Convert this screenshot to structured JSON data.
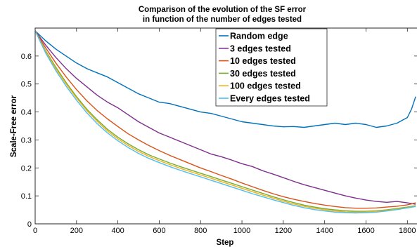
{
  "chart_data": {
    "type": "line",
    "title_lines": [
      "Comparison of the evolution of the SF error",
      "in function of the number of edges tested"
    ],
    "xlabel": "Step",
    "ylabel": "Scale-Free error",
    "xlim": [
      0,
      1850
    ],
    "ylim": [
      0,
      0.7
    ],
    "x_ticks": [
      0,
      200,
      400,
      600,
      800,
      1000,
      1200,
      1400,
      1600,
      1800
    ],
    "y_ticks": [
      0,
      0.1,
      0.2,
      0.3,
      0.4,
      0.5,
      0.6
    ],
    "legend_position": "top-center",
    "grid": false,
    "series": [
      {
        "name": "Random edge",
        "color": "#0072BD",
        "x": [
          0,
          50,
          100,
          150,
          200,
          250,
          300,
          350,
          400,
          450,
          500,
          550,
          600,
          650,
          700,
          750,
          800,
          850,
          900,
          950,
          1000,
          1050,
          1100,
          1150,
          1200,
          1250,
          1300,
          1350,
          1400,
          1450,
          1500,
          1550,
          1600,
          1650,
          1700,
          1750,
          1800,
          1820,
          1840
        ],
        "y": [
          0.69,
          0.655,
          0.625,
          0.6,
          0.575,
          0.555,
          0.54,
          0.525,
          0.505,
          0.485,
          0.465,
          0.45,
          0.435,
          0.43,
          0.42,
          0.41,
          0.4,
          0.395,
          0.385,
          0.375,
          0.365,
          0.36,
          0.355,
          0.35,
          0.347,
          0.348,
          0.345,
          0.35,
          0.355,
          0.36,
          0.355,
          0.36,
          0.355,
          0.345,
          0.35,
          0.36,
          0.38,
          0.41,
          0.455
        ]
      },
      {
        "name": "3 edges tested",
        "color": "#7E2F8E",
        "x": [
          0,
          50,
          100,
          150,
          200,
          250,
          300,
          350,
          400,
          450,
          500,
          550,
          600,
          650,
          700,
          750,
          800,
          850,
          900,
          950,
          1000,
          1050,
          1100,
          1150,
          1200,
          1250,
          1300,
          1350,
          1400,
          1450,
          1500,
          1550,
          1600,
          1650,
          1700,
          1750,
          1800,
          1840
        ],
        "y": [
          0.69,
          0.64,
          0.595,
          0.555,
          0.52,
          0.49,
          0.46,
          0.435,
          0.415,
          0.39,
          0.365,
          0.345,
          0.325,
          0.31,
          0.295,
          0.28,
          0.265,
          0.25,
          0.24,
          0.228,
          0.215,
          0.205,
          0.19,
          0.178,
          0.165,
          0.152,
          0.14,
          0.13,
          0.12,
          0.11,
          0.1,
          0.092,
          0.085,
          0.08,
          0.077,
          0.08,
          0.075,
          0.07
        ]
      },
      {
        "name": "10 edges tested",
        "color": "#D95319",
        "x": [
          0,
          50,
          100,
          150,
          200,
          250,
          300,
          350,
          400,
          450,
          500,
          550,
          600,
          650,
          700,
          750,
          800,
          850,
          900,
          950,
          1000,
          1050,
          1100,
          1150,
          1200,
          1250,
          1300,
          1350,
          1400,
          1450,
          1500,
          1550,
          1600,
          1650,
          1700,
          1750,
          1800,
          1840
        ],
        "y": [
          0.69,
          0.63,
          0.575,
          0.525,
          0.48,
          0.44,
          0.405,
          0.375,
          0.348,
          0.322,
          0.3,
          0.28,
          0.262,
          0.245,
          0.23,
          0.215,
          0.2,
          0.187,
          0.173,
          0.16,
          0.146,
          0.133,
          0.12,
          0.108,
          0.097,
          0.088,
          0.08,
          0.073,
          0.067,
          0.062,
          0.058,
          0.056,
          0.056,
          0.057,
          0.06,
          0.063,
          0.068,
          0.075
        ]
      },
      {
        "name": "30 edges tested",
        "color": "#77AC30",
        "x": [
          0,
          50,
          100,
          150,
          200,
          250,
          300,
          350,
          400,
          450,
          500,
          550,
          600,
          650,
          700,
          750,
          800,
          850,
          900,
          950,
          1000,
          1050,
          1100,
          1150,
          1200,
          1250,
          1300,
          1350,
          1400,
          1450,
          1500,
          1550,
          1600,
          1650,
          1700,
          1750,
          1800,
          1840
        ],
        "y": [
          0.69,
          0.62,
          0.56,
          0.505,
          0.455,
          0.41,
          0.372,
          0.338,
          0.31,
          0.286,
          0.265,
          0.247,
          0.232,
          0.218,
          0.205,
          0.193,
          0.181,
          0.169,
          0.157,
          0.145,
          0.133,
          0.121,
          0.109,
          0.097,
          0.086,
          0.076,
          0.067,
          0.06,
          0.054,
          0.05,
          0.047,
          0.045,
          0.045,
          0.047,
          0.05,
          0.055,
          0.06,
          0.065
        ]
      },
      {
        "name": "100 edges tested",
        "color": "#EDB120",
        "x": [
          0,
          50,
          100,
          150,
          200,
          250,
          300,
          350,
          400,
          450,
          500,
          550,
          600,
          650,
          700,
          750,
          800,
          850,
          900,
          950,
          1000,
          1050,
          1100,
          1150,
          1200,
          1250,
          1300,
          1350,
          1400,
          1450,
          1500,
          1550,
          1600,
          1650,
          1700,
          1750,
          1800,
          1840
        ],
        "y": [
          0.69,
          0.617,
          0.555,
          0.5,
          0.45,
          0.405,
          0.366,
          0.332,
          0.304,
          0.28,
          0.259,
          0.241,
          0.226,
          0.212,
          0.199,
          0.187,
          0.175,
          0.163,
          0.151,
          0.139,
          0.127,
          0.115,
          0.103,
          0.092,
          0.081,
          0.071,
          0.063,
          0.056,
          0.05,
          0.046,
          0.043,
          0.042,
          0.043,
          0.045,
          0.048,
          0.053,
          0.058,
          0.063
        ]
      },
      {
        "name": "Every edges tested",
        "color": "#4DBEEE",
        "x": [
          0,
          50,
          100,
          150,
          200,
          250,
          300,
          350,
          400,
          450,
          500,
          550,
          600,
          650,
          700,
          750,
          800,
          850,
          900,
          950,
          1000,
          1050,
          1100,
          1150,
          1200,
          1250,
          1300,
          1350,
          1400,
          1450,
          1500,
          1550,
          1600,
          1650,
          1700,
          1750,
          1800,
          1840
        ],
        "y": [
          0.69,
          0.612,
          0.548,
          0.492,
          0.442,
          0.397,
          0.358,
          0.325,
          0.297,
          0.273,
          0.252,
          0.234,
          0.219,
          0.205,
          0.192,
          0.18,
          0.168,
          0.156,
          0.144,
          0.132,
          0.12,
          0.108,
          0.097,
          0.086,
          0.076,
          0.066,
          0.058,
          0.051,
          0.046,
          0.042,
          0.04,
          0.039,
          0.04,
          0.042,
          0.046,
          0.051,
          0.057,
          0.062
        ]
      }
    ]
  }
}
